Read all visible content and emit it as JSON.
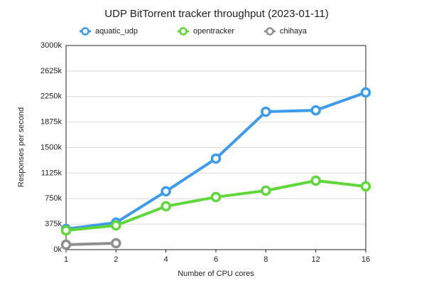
{
  "chart_data": {
    "type": "line",
    "title": "UDP BitTorrent tracker throughput (2023-01-11)",
    "x_label": "Number of CPU cores",
    "y_label": "Responses per second",
    "categories": [
      "1",
      "2",
      "4",
      "6",
      "8",
      "12",
      "16"
    ],
    "series": [
      {
        "name": "aquatic_udp",
        "color": "#3d9be9",
        "values": [
          303000,
          397000,
          857000,
          1338000,
          2027000,
          2048000,
          2310000
        ]
      },
      {
        "name": "opentracker",
        "color": "#5fd63a",
        "values": [
          282000,
          355000,
          637000,
          773000,
          867000,
          1014000,
          930000
        ]
      },
      {
        "name": "chihaya",
        "color": "#8f8f8f",
        "values": [
          73000,
          94000,
          null,
          null,
          null,
          null,
          null
        ]
      }
    ],
    "ylim": [
      0,
      3000000
    ],
    "yticks": [
      {
        "value": 0,
        "label": "0k"
      },
      {
        "value": 375000,
        "label": "375k"
      },
      {
        "value": 750000,
        "label": "750k"
      },
      {
        "value": 1125000,
        "label": "1125k"
      },
      {
        "value": 1500000,
        "label": "1500k"
      },
      {
        "value": 1875000,
        "label": "1875k"
      },
      {
        "value": 2250000,
        "label": "2250k"
      },
      {
        "value": 2625000,
        "label": "2625k"
      },
      {
        "value": 3000000,
        "label": "3000k"
      }
    ],
    "grid": true,
    "legend": "top"
  }
}
